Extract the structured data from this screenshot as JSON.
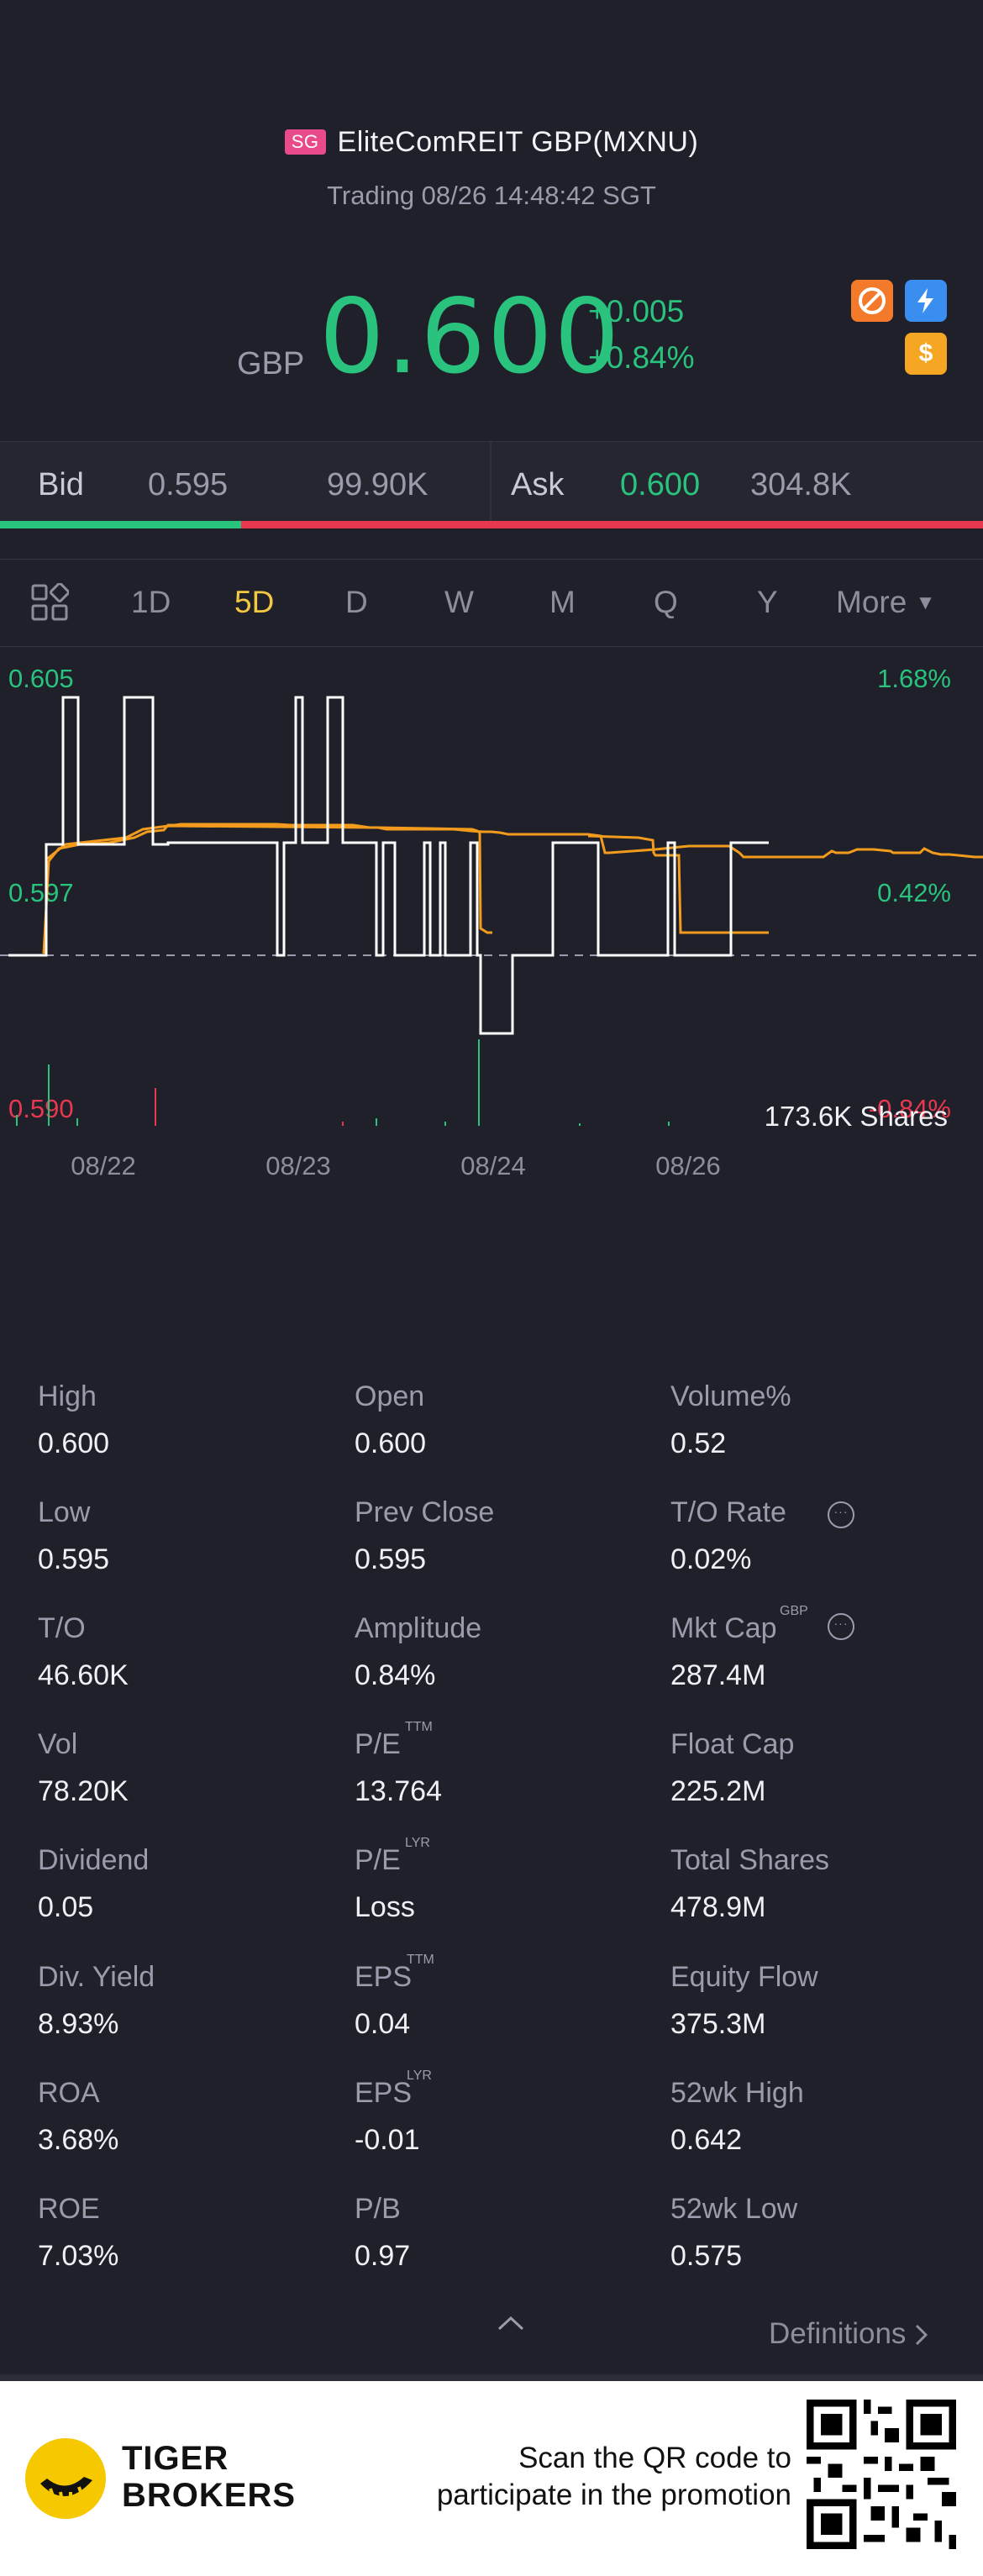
{
  "header": {
    "market_badge": "SG",
    "title": "EliteComREIT GBP(MXNU)",
    "trading_status": "Trading 08/26 14:48:42 SGT",
    "currency": "GBP",
    "price": "0.600",
    "change_abs": "+0.005",
    "change_pct": "+0.84%",
    "icons": [
      "no-short-icon",
      "flash-icon",
      "dollar-icon"
    ]
  },
  "bidask": {
    "bid_label": "Bid",
    "bid_price": "0.595",
    "bid_size": "99.90K",
    "ask_label": "Ask",
    "ask_price": "0.600",
    "ask_size": "304.8K",
    "bid_fraction": 0.245
  },
  "tabs": [
    "1D",
    "5D",
    "D",
    "W",
    "M",
    "Q",
    "Y",
    "More"
  ],
  "active_tab": "5D",
  "chart": {
    "price_high": "0.605",
    "price_mid": "0.597",
    "price_low": "0.590",
    "pct_high": "1.68%",
    "pct_mid": "0.42%",
    "pct_low": "-0.84%",
    "volume_label": "173.6K Shares",
    "dates": [
      "08/22",
      "08/23",
      "08/24",
      "08/26"
    ]
  },
  "chart_data": {
    "type": "line",
    "title": "EliteComREIT GBP(MXNU) 5D",
    "ylim": [
      0.59,
      0.605
    ],
    "prev_close": 0.595,
    "categories": [
      "08/22",
      "08/23",
      "08/24",
      "08/26"
    ],
    "series": [
      {
        "name": "Price",
        "color": "#ffffff"
      },
      {
        "name": "Avg Price",
        "color": "#f29b1d"
      }
    ],
    "volume_total": "173.6K Shares"
  },
  "stats": [
    {
      "label": "High",
      "value": "0.600"
    },
    {
      "label": "Open",
      "value": "0.600"
    },
    {
      "label": "Volume%",
      "value": "0.52"
    },
    {
      "label": "Low",
      "value": "0.595"
    },
    {
      "label": "Prev Close",
      "value": "0.595"
    },
    {
      "label": "T/O Rate",
      "value": "0.02%"
    },
    {
      "label": "T/O",
      "value": "46.60K"
    },
    {
      "label": "Amplitude",
      "value": "0.84%"
    },
    {
      "label": "Mkt Cap",
      "value": "287.4M",
      "sup": "GBP"
    },
    {
      "label": "Vol",
      "value": "78.20K"
    },
    {
      "label": "P/E",
      "value": "13.764",
      "sup": "TTM"
    },
    {
      "label": "Float Cap",
      "value": "225.2M"
    },
    {
      "label": "Dividend",
      "value": "0.05"
    },
    {
      "label": "P/E",
      "value": "Loss",
      "sup": "LYR"
    },
    {
      "label": "Total Shares",
      "value": "478.9M"
    },
    {
      "label": "Div. Yield",
      "value": "8.93%"
    },
    {
      "label": "EPS",
      "value": "0.04",
      "sup": "TTM"
    },
    {
      "label": "Equity Flow",
      "value": "375.3M"
    },
    {
      "label": "ROA",
      "value": "3.68%"
    },
    {
      "label": "EPS",
      "value": "-0.01",
      "sup": "LYR"
    },
    {
      "label": "52wk High",
      "value": "0.642"
    },
    {
      "label": "ROE",
      "value": "7.03%"
    },
    {
      "label": "P/B",
      "value": "0.97"
    },
    {
      "label": "52wk Low",
      "value": "0.575"
    }
  ],
  "definitions_label": "Definitions",
  "footer": {
    "brand_line1": "TIGER",
    "brand_line2": "BROKERS",
    "promo_line1": "Scan the QR code to",
    "promo_line2": "participate in the promotion"
  },
  "colors": {
    "up": "#29c37e",
    "down": "#e8384f",
    "active_tab": "#f5c842",
    "background": "#1f2029"
  }
}
